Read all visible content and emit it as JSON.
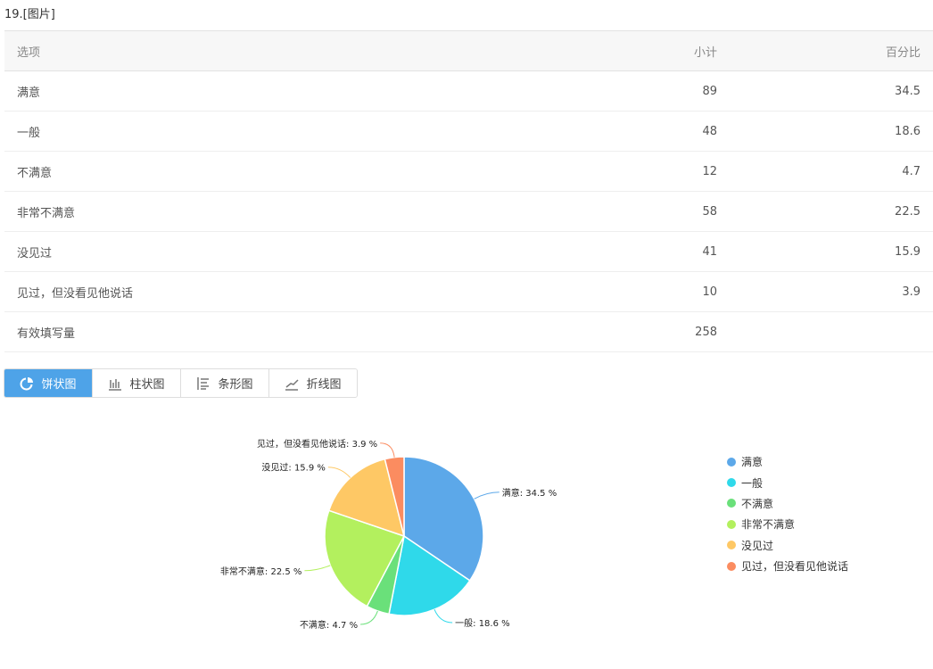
{
  "question_title": "19.[图片]",
  "table": {
    "headers": [
      "选项",
      "小计",
      "百分比"
    ],
    "rows": [
      [
        "满意",
        "89",
        "34.5"
      ],
      [
        "一般",
        "48",
        "18.6"
      ],
      [
        "不满意",
        "12",
        "4.7"
      ],
      [
        "非常不满意",
        "58",
        "22.5"
      ],
      [
        "没见过",
        "41",
        "15.9"
      ],
      [
        "见过，但没看见他说话",
        "10",
        "3.9"
      ],
      [
        "有效填写量",
        "258",
        ""
      ]
    ]
  },
  "tabs": [
    {
      "label": "饼状图",
      "icon": "pie-icon",
      "active": true
    },
    {
      "label": "柱状图",
      "icon": "bar-chart-icon"
    },
    {
      "label": "条形图",
      "icon": "horizontal-bar-icon"
    },
    {
      "label": "折线图",
      "icon": "line-chart-icon"
    }
  ],
  "chart_data": {
    "type": "pie",
    "categories": [
      "满意",
      "一般",
      "不满意",
      "非常不满意",
      "没见过",
      "见过，但没看见他说话"
    ],
    "values": [
      34.5,
      18.6,
      4.7,
      22.5,
      15.9,
      3.9
    ],
    "labels": [
      "满意: 34.5 %",
      "一般: 18.6 %",
      "不满意: 4.7 %",
      "非常不满意: 22.5 %",
      "没见过: 15.9 %",
      "见过，但没看见他说话: 3.9 %"
    ],
    "colors": [
      "#5ca8e9",
      "#2fd9ea",
      "#6ae07a",
      "#b3f05e",
      "#fec865",
      "#fb8c60"
    ],
    "legend_position": "right"
  }
}
